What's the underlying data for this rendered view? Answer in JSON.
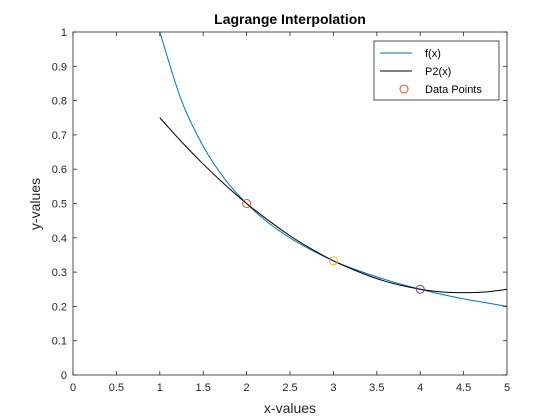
{
  "chart_data": {
    "type": "line",
    "title": "Lagrange Interpolation",
    "xlabel": "x-values",
    "ylabel": "y-values",
    "xlim": [
      0,
      5
    ],
    "ylim": [
      0,
      1
    ],
    "xticks": [
      0,
      0.5,
      1,
      1.5,
      2,
      2.5,
      3,
      3.5,
      4,
      4.5,
      5
    ],
    "yticks": [
      0,
      0.1,
      0.2,
      0.3,
      0.4,
      0.5,
      0.6,
      0.7,
      0.8,
      0.9,
      1
    ],
    "grid": false,
    "legend_position": "top-right",
    "series": [
      {
        "name": "f(x)",
        "color": "#0072BD",
        "x": [
          1,
          1.25,
          1.5,
          1.75,
          2,
          2.25,
          2.5,
          2.75,
          3,
          3.25,
          3.5,
          3.75,
          4,
          4.25,
          4.5,
          4.75,
          5
        ],
        "y": [
          1,
          0.8,
          0.667,
          0.571,
          0.5,
          0.444,
          0.4,
          0.364,
          0.333,
          0.308,
          0.286,
          0.267,
          0.25,
          0.235,
          0.222,
          0.211,
          0.2
        ]
      },
      {
        "name": "P2(x)",
        "color": "#000000",
        "x": [
          1,
          1.25,
          1.5,
          1.75,
          2,
          2.25,
          2.5,
          2.75,
          3,
          3.25,
          3.5,
          3.75,
          4,
          4.25,
          4.5,
          4.75,
          5
        ],
        "y": [
          0.75,
          0.68,
          0.615,
          0.555,
          0.5,
          0.451,
          0.406,
          0.367,
          0.333,
          0.305,
          0.281,
          0.263,
          0.25,
          0.242,
          0.24,
          0.242,
          0.25
        ]
      },
      {
        "name": "Data Points",
        "type": "scatter",
        "marker": "circle",
        "x": [
          2,
          3,
          4
        ],
        "y": [
          0.5,
          0.333,
          0.25
        ],
        "marker_colors": [
          "#D95319",
          "#EDB120",
          "#7E2F8E"
        ]
      }
    ]
  }
}
